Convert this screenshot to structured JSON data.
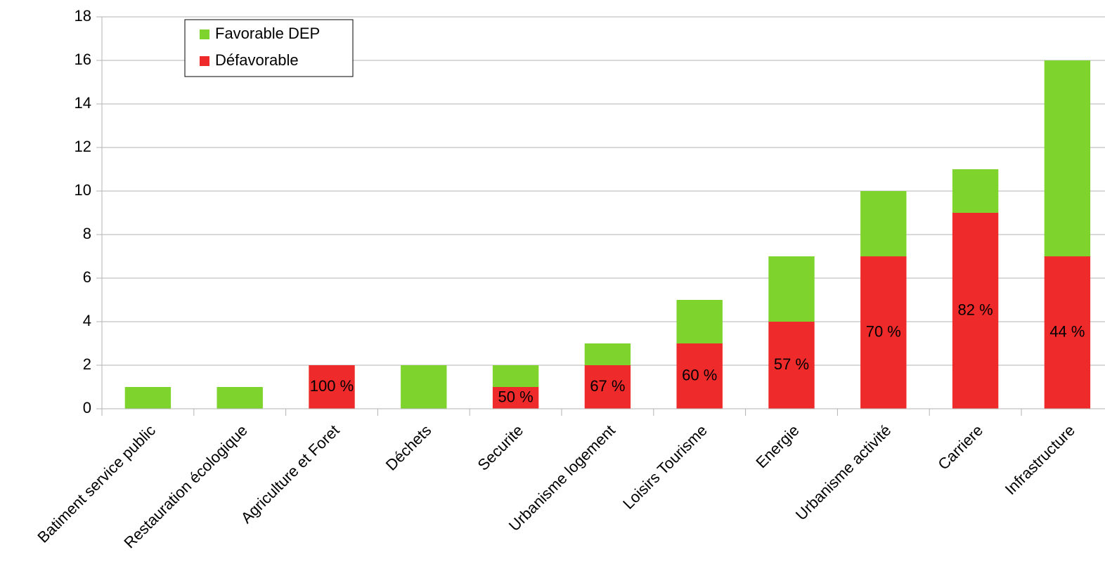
{
  "chart_data": {
    "type": "stacked_bar",
    "categories": [
      "Batiment service public",
      "Restauration écologique",
      "Agriculture et Foret",
      "Déchets",
      "Securite",
      "Urbanisme logement",
      "Loisirs Tourisme",
      "Energie",
      "Urbanisme activité",
      "Carriere",
      "Infrastructure"
    ],
    "series": [
      {
        "name": "Défavorable",
        "color": "#ee2a2a",
        "values": [
          0,
          0,
          2,
          0,
          1,
          2,
          3,
          4,
          7,
          9,
          7
        ],
        "data_labels": [
          null,
          null,
          "100 %",
          null,
          "50 %",
          "67 %",
          "60 %",
          "57 %",
          "70 %",
          "82 %",
          "44 %"
        ]
      },
      {
        "name": "Favorable DEP",
        "color": "#7ed32d",
        "values": [
          1,
          1,
          0,
          2,
          1,
          1,
          2,
          3,
          3,
          2,
          9
        ]
      }
    ],
    "ylim": [
      0,
      18
    ],
    "yticks": [
      0,
      2,
      4,
      6,
      8,
      10,
      12,
      14,
      16,
      18
    ],
    "grid": true,
    "legend": "top-left"
  }
}
